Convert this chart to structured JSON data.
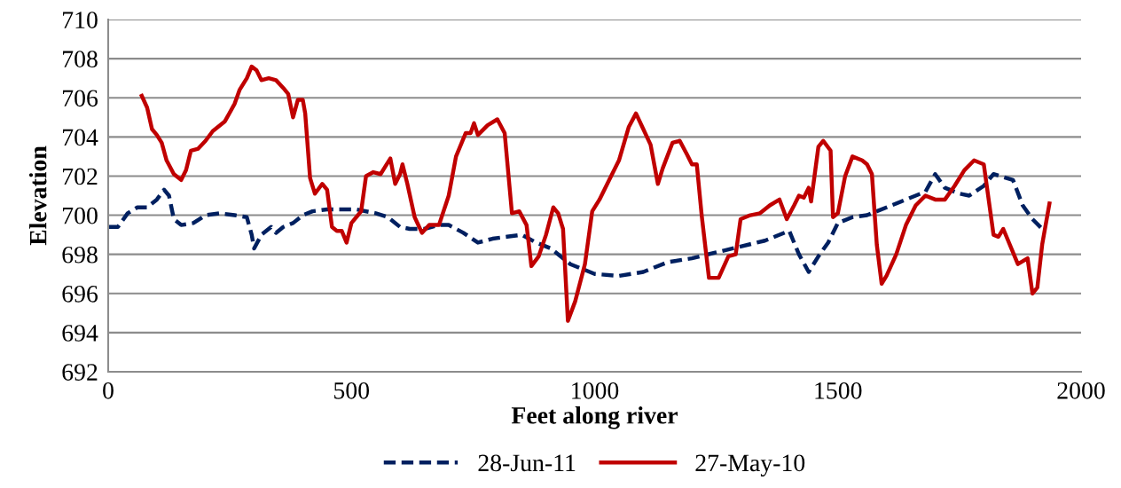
{
  "chart_data": {
    "type": "line",
    "xlabel": "Feet along river",
    "ylabel": "Elevation",
    "xlim": [
      0,
      2000
    ],
    "xticks": [
      0,
      500,
      1000,
      1500,
      2000
    ],
    "ylim": [
      692,
      710
    ],
    "yticks": [
      692,
      694,
      696,
      698,
      700,
      702,
      704,
      706,
      708,
      710
    ],
    "grid": "y",
    "legend": "bottom",
    "series": [
      {
        "name": "28-Jun-11",
        "color": "#002060",
        "line_style": "dashed",
        "x": [
          0,
          20,
          40,
          60,
          80,
          100,
          115,
          125,
          135,
          150,
          175,
          200,
          230,
          260,
          285,
          295,
          300,
          315,
          335,
          345,
          360,
          380,
          400,
          420,
          450,
          480,
          510,
          550,
          575,
          600,
          620,
          650,
          680,
          700,
          730,
          760,
          790,
          820,
          850,
          880,
          910,
          950,
          980,
          1000,
          1050,
          1100,
          1150,
          1200,
          1250,
          1300,
          1350,
          1400,
          1420,
          1440,
          1460,
          1480,
          1500,
          1530,
          1560,
          1600,
          1640,
          1680,
          1700,
          1720,
          1750,
          1770,
          1800,
          1820,
          1860,
          1880,
          1900,
          1920
        ],
        "values": [
          699.4,
          699.4,
          700.1,
          700.4,
          700.4,
          700.8,
          701.3,
          701.0,
          699.8,
          699.5,
          699.6,
          700.0,
          700.1,
          700.0,
          699.9,
          699.0,
          698.3,
          699.0,
          699.4,
          699.1,
          699.4,
          699.6,
          700.0,
          700.2,
          700.3,
          700.3,
          700.3,
          700.1,
          699.9,
          699.4,
          699.3,
          699.3,
          699.5,
          699.5,
          699.1,
          698.6,
          698.8,
          698.9,
          699.0,
          698.6,
          698.3,
          697.5,
          697.2,
          697.0,
          696.9,
          697.1,
          697.6,
          697.8,
          698.1,
          698.4,
          698.7,
          699.2,
          698.0,
          697.1,
          697.9,
          698.6,
          699.6,
          699.9,
          700.0,
          700.4,
          700.8,
          701.2,
          702.1,
          701.4,
          701.1,
          701.0,
          701.5,
          702.1,
          701.8,
          700.5,
          699.8,
          699.3
        ]
      },
      {
        "name": "27-May-10",
        "color": "#c00000",
        "line_style": "solid",
        "x": [
          69,
          80,
          90,
          100,
          110,
          120,
          135,
          150,
          160,
          170,
          185,
          200,
          215,
          240,
          260,
          270,
          285,
          295,
          305,
          315,
          330,
          345,
          360,
          370,
          380,
          390,
          400,
          405,
          415,
          425,
          440,
          450,
          460,
          470,
          480,
          490,
          500,
          510,
          520,
          530,
          545,
          560,
          570,
          580,
          590,
          600,
          605,
          615,
          630,
          645,
          660,
          680,
          700,
          715,
          735,
          745,
          752,
          760,
          780,
          800,
          815,
          830,
          845,
          860,
          870,
          885,
          900,
          915,
          925,
          935,
          945,
          960,
          980,
          995,
          1010,
          1030,
          1050,
          1070,
          1085,
          1100,
          1115,
          1130,
          1140,
          1160,
          1175,
          1190,
          1200,
          1210,
          1220,
          1235,
          1255,
          1275,
          1290,
          1300,
          1320,
          1340,
          1360,
          1380,
          1395,
          1410,
          1420,
          1430,
          1440,
          1445,
          1460,
          1470,
          1485,
          1490,
          1500,
          1515,
          1530,
          1550,
          1560,
          1570,
          1580,
          1590,
          1600,
          1620,
          1640,
          1660,
          1680,
          1700,
          1720,
          1740,
          1760,
          1780,
          1800,
          1820,
          1830,
          1840,
          1860,
          1870,
          1890,
          1900,
          1910,
          1920,
          1935
        ],
        "values": [
          706.1,
          705.5,
          704.4,
          704.1,
          703.7,
          702.8,
          702.1,
          701.8,
          702.3,
          703.3,
          703.4,
          703.8,
          704.3,
          704.8,
          705.7,
          706.4,
          707.0,
          707.6,
          707.4,
          706.9,
          707.0,
          706.9,
          706.5,
          706.2,
          705.0,
          705.9,
          705.9,
          705.2,
          701.9,
          701.1,
          701.6,
          701.3,
          699.4,
          699.2,
          699.2,
          698.6,
          699.6,
          699.9,
          700.2,
          702.0,
          702.2,
          702.1,
          702.5,
          702.9,
          701.6,
          702.1,
          702.6,
          701.6,
          699.9,
          699.1,
          699.5,
          699.5,
          701.0,
          703.0,
          704.2,
          704.2,
          704.7,
          704.1,
          704.6,
          704.9,
          704.2,
          700.1,
          700.2,
          699.5,
          697.4,
          697.9,
          699.0,
          700.4,
          700.1,
          699.3,
          694.6,
          695.6,
          697.5,
          700.2,
          700.8,
          701.8,
          702.8,
          704.5,
          705.2,
          704.4,
          703.6,
          701.6,
          702.4,
          703.7,
          703.8,
          703.1,
          702.6,
          702.6,
          700.0,
          696.8,
          696.8,
          697.9,
          698.0,
          699.8,
          700.0,
          700.1,
          700.5,
          700.8,
          699.8,
          700.5,
          701.0,
          700.9,
          701.4,
          700.7,
          703.5,
          703.8,
          703.3,
          699.9,
          700.1,
          702.0,
          703.0,
          702.8,
          702.6,
          702.1,
          698.5,
          696.5,
          696.9,
          698.0,
          699.5,
          700.5,
          701.0,
          700.8,
          700.8,
          701.5,
          702.3,
          702.8,
          702.6,
          699.0,
          698.9,
          699.3,
          698.1,
          697.5,
          697.8,
          696.0,
          696.3,
          698.5,
          700.6
        ]
      }
    ]
  }
}
